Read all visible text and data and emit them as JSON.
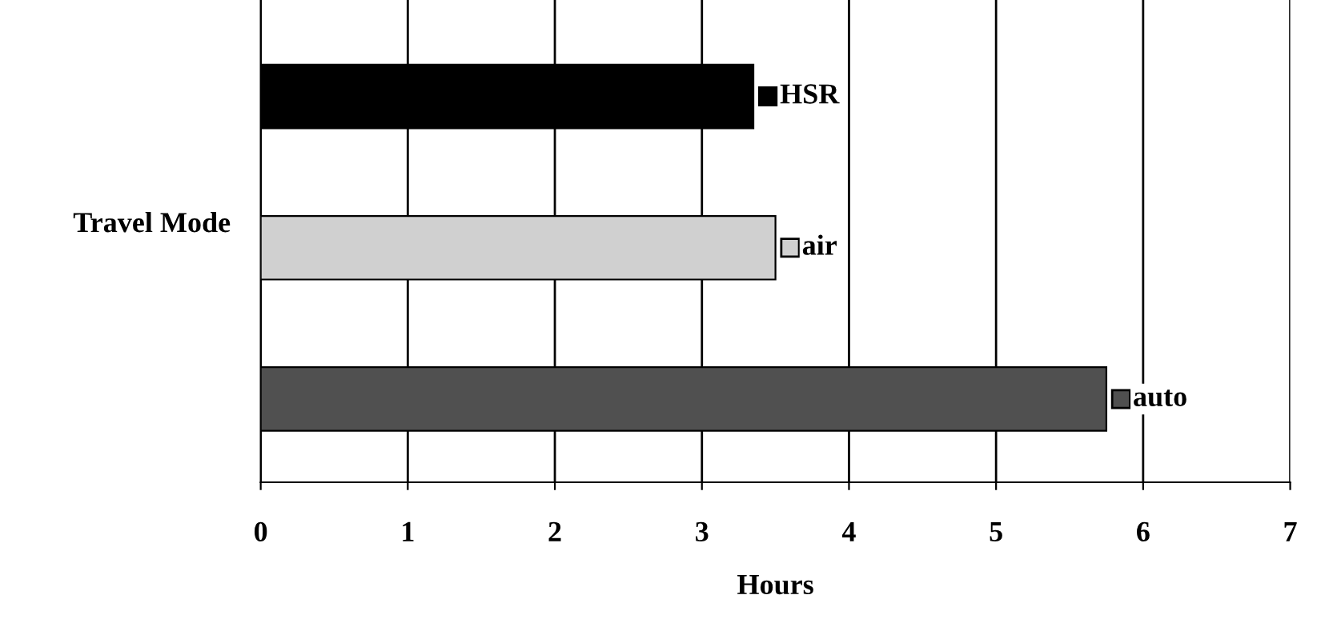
{
  "chart_data": {
    "type": "bar",
    "orientation": "horizontal",
    "ylabel": "Travel Mode",
    "xlabel": "Hours",
    "categories": [
      null,
      null,
      null
    ],
    "series": [
      {
        "name": "HSR",
        "color": "#000000",
        "values": [
          3.35,
          null,
          null
        ]
      },
      {
        "name": "air",
        "color": "#d0d0d0",
        "values": [
          null,
          3.5,
          null
        ]
      },
      {
        "name": "auto",
        "color": "#505050",
        "values": [
          null,
          null,
          5.75
        ]
      }
    ],
    "xlim": [
      0,
      7
    ],
    "xticks": [
      0,
      1,
      2,
      3,
      4,
      5,
      6,
      7
    ],
    "grid": "x",
    "legend": "right"
  }
}
